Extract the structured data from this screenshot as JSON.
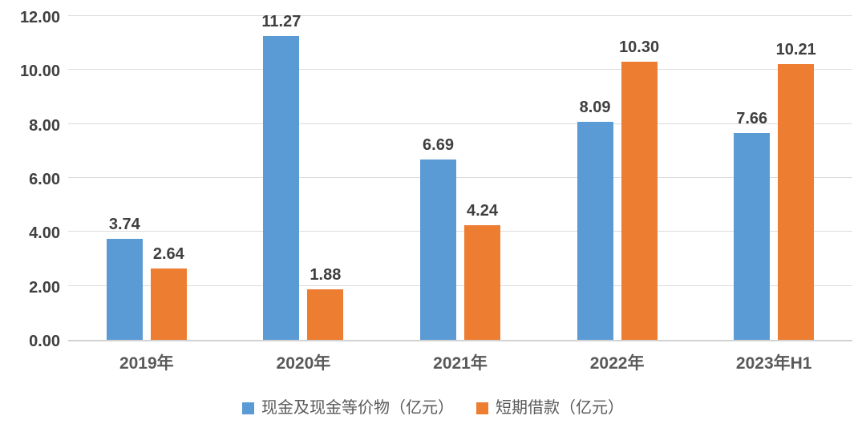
{
  "chart_data": {
    "type": "bar",
    "title": "",
    "categories": [
      "2019年",
      "2020年",
      "2021年",
      "2022年",
      "2023年H1"
    ],
    "series": [
      {
        "name": "现金及现金等价物（亿元）",
        "color": "#5B9BD5",
        "values": [
          3.74,
          11.27,
          6.69,
          8.09,
          7.66
        ],
        "labels": [
          "3.74",
          "11.27",
          "6.69",
          "8.09",
          "7.66"
        ]
      },
      {
        "name": "短期借款（亿元）",
        "color": "#ED7D31",
        "values": [
          2.64,
          1.88,
          4.24,
          10.3,
          10.21
        ],
        "labels": [
          "2.64",
          "1.88",
          "4.24",
          "10.30",
          "10.21"
        ]
      }
    ],
    "xlabel": "",
    "ylabel": "",
    "ylim": [
      0,
      12
    ],
    "yticks": [
      0,
      2,
      4,
      6,
      8,
      10,
      12
    ],
    "ytick_labels": [
      "0.00",
      "2.00",
      "4.00",
      "6.00",
      "8.00",
      "10.00",
      "12.00"
    ],
    "grid": true,
    "legend_position": "bottom",
    "value_labels_shown": true
  },
  "colors": {
    "series_cash": "#5B9BD5",
    "series_debt": "#ED7D31",
    "gridline": "#DCDCDC",
    "axis_line": "#D2D2D2",
    "axis_label": "#595959",
    "tick_label": "#404040",
    "data_label": "#3F3F3F",
    "background": "#FFFFFF"
  }
}
